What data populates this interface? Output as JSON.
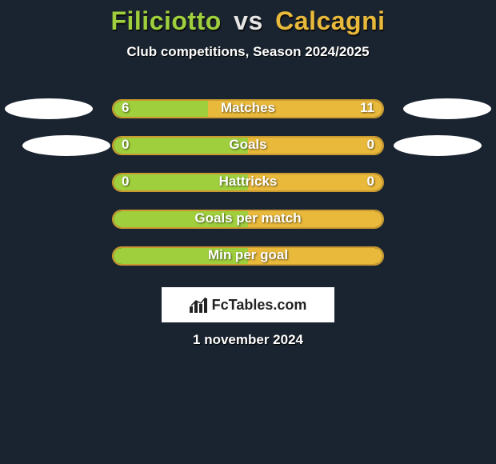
{
  "title": {
    "player1": "Filiciotto",
    "vs": "vs",
    "player2": "Calcagni"
  },
  "subtitle": "Club competitions, Season 2024/2025",
  "colors": {
    "player1": "#9fcf3c",
    "player2": "#e9b93b",
    "player1_border": "#8fb935",
    "player2_border": "#c99a2f",
    "background": "#1a2430",
    "oval": "#ffffff"
  },
  "stats": [
    {
      "label": "Matches",
      "left_value": "6",
      "right_value": "11",
      "left_pct": 35,
      "right_pct": 65,
      "show_values": true,
      "show_left_oval": true,
      "show_right_oval": true,
      "left_oval_offset": 6,
      "right_oval_offset": 6
    },
    {
      "label": "Goals",
      "left_value": "0",
      "right_value": "0",
      "left_pct": 50,
      "right_pct": 50,
      "show_values": true,
      "show_left_oval": true,
      "show_right_oval": true,
      "left_oval_offset": 28,
      "right_oval_offset": 18
    },
    {
      "label": "Hattricks",
      "left_value": "0",
      "right_value": "0",
      "left_pct": 50,
      "right_pct": 50,
      "show_values": true,
      "show_left_oval": false,
      "show_right_oval": false
    },
    {
      "label": "Goals per match",
      "left_value": "",
      "right_value": "",
      "left_pct": 50,
      "right_pct": 50,
      "show_values": false,
      "show_left_oval": false,
      "show_right_oval": false
    },
    {
      "label": "Min per goal",
      "left_value": "",
      "right_value": "",
      "left_pct": 50,
      "right_pct": 50,
      "show_values": false,
      "show_left_oval": false,
      "show_right_oval": false
    }
  ],
  "logo": {
    "icon_name": "bar-chart-icon",
    "text_prefix": "Fc",
    "text_rest": "Tables.com"
  },
  "date": "1 november 2024",
  "typography": {
    "title_fontsize": 32,
    "subtitle_fontsize": 17,
    "stat_label_fontsize": 17,
    "date_fontsize": 17
  }
}
